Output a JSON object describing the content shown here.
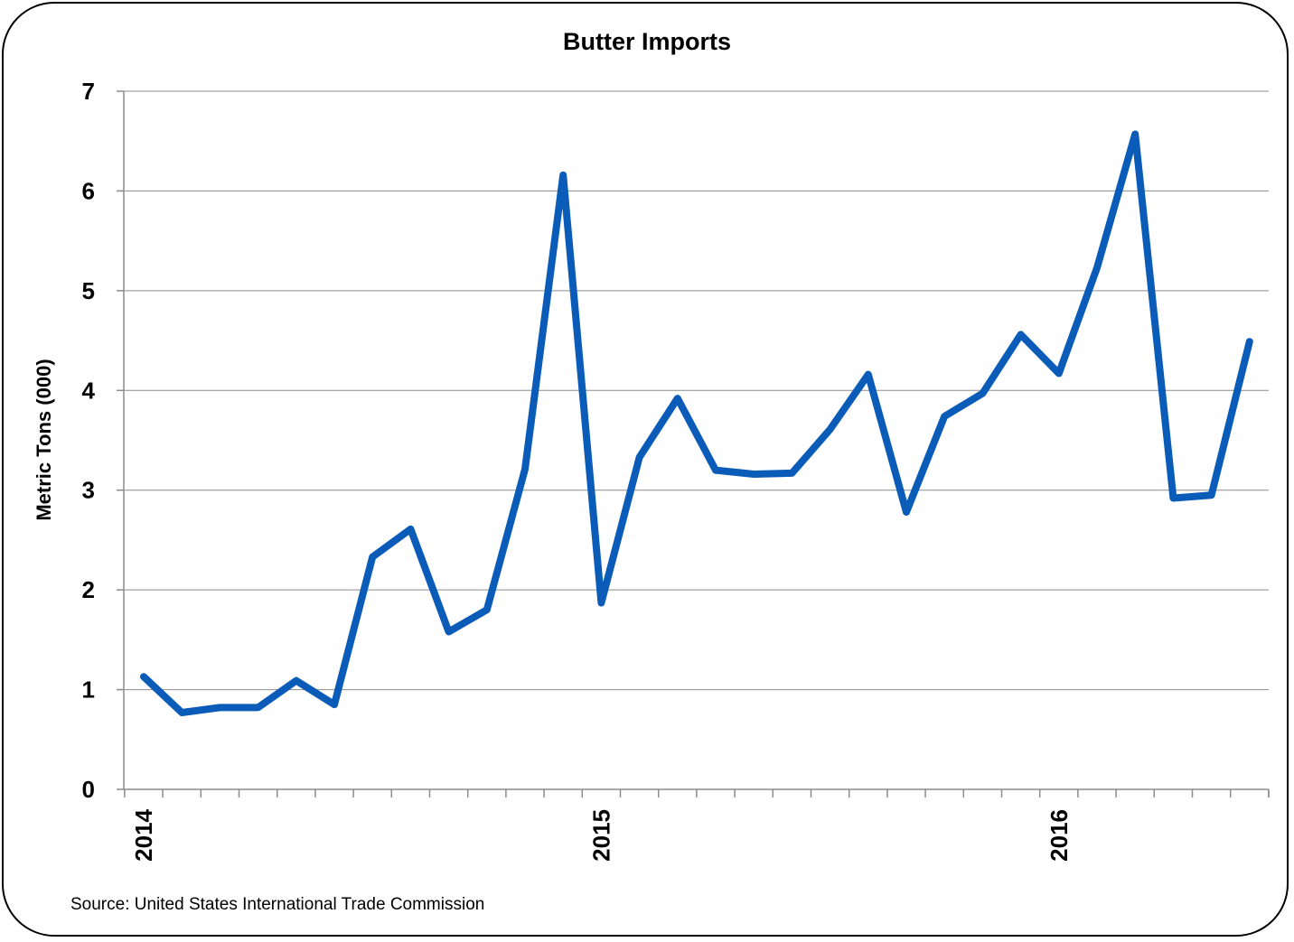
{
  "chart_data": {
    "type": "line",
    "title": "Butter Imports",
    "ylabel": "Metric Tons (000)",
    "xlabel": "",
    "ylim": [
      0,
      7
    ],
    "yticks": [
      0,
      1,
      2,
      3,
      4,
      5,
      6,
      7
    ],
    "x_tick_labels": [
      "2014",
      "2015",
      "2016"
    ],
    "x": [
      "2014-01",
      "2014-02",
      "2014-03",
      "2014-04",
      "2014-05",
      "2014-06",
      "2014-07",
      "2014-08",
      "2014-09",
      "2014-10",
      "2014-11",
      "2014-12",
      "2015-01",
      "2015-02",
      "2015-03",
      "2015-04",
      "2015-05",
      "2015-06",
      "2015-07",
      "2015-08",
      "2015-09",
      "2015-10",
      "2015-11",
      "2015-12",
      "2016-01",
      "2016-02",
      "2016-03",
      "2016-04",
      "2016-05",
      "2016-06"
    ],
    "series": [
      {
        "values": [
          1.13,
          0.77,
          0.82,
          0.82,
          1.09,
          0.85,
          2.33,
          2.61,
          1.58,
          1.8,
          3.21,
          6.16,
          1.87,
          3.33,
          3.92,
          3.2,
          3.16,
          3.17,
          3.61,
          4.16,
          2.78,
          3.74,
          3.97,
          4.56,
          4.17,
          5.23,
          6.57,
          2.92,
          2.95,
          4.49
        ],
        "color": "#0a5cb8"
      }
    ],
    "grid": true,
    "legend": "none",
    "note": "Source: United States International Trade Commission"
  },
  "colors": {
    "line": "#0a5cb8",
    "grid": "#8c8c8c",
    "axis": "#8c8c8c",
    "text": "#000000"
  }
}
